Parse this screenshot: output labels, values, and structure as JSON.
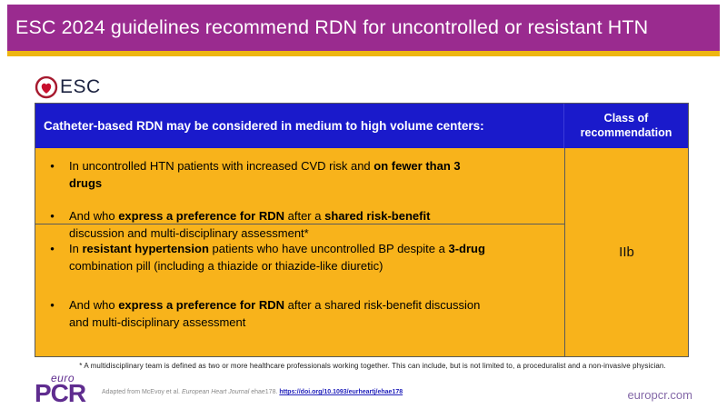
{
  "banner": {
    "title": "ESC 2024 guidelines recommend RDN for uncontrolled or resistant HTN"
  },
  "esc_logo": {
    "text": "ESC",
    "icon": "heart-icon"
  },
  "table": {
    "header": {
      "left": "Catheter-based RDN may be considered in medium to high volume centers:",
      "right": "Class of recommendation"
    },
    "rows": [
      {
        "bullets": [
          [
            {
              "t": "In uncontrolled HTN patients with increased CVD risk and "
            },
            {
              "t": "on fewer than 3 drugs",
              "b": true
            }
          ],
          [
            {
              "t": "And who "
            },
            {
              "t": "express a preference for RDN",
              "b": true
            },
            {
              "t": " after a "
            },
            {
              "t": "shared risk-benefit",
              "b": true
            },
            {
              "t": " discussion and multi-disciplinary assessment*"
            }
          ]
        ]
      },
      {
        "bullets": [
          [
            {
              "t": "In "
            },
            {
              "t": "resistant hypertension",
              "b": true
            },
            {
              "t": " patients who have uncontrolled BP despite a "
            },
            {
              "t": "3-drug",
              "b": true
            },
            {
              "t": " combination pill (including a thiazide or thiazide-like diuretic)"
            }
          ],
          [
            {
              "t": "And who "
            },
            {
              "t": "express a preference for RDN",
              "b": true
            },
            {
              "t": " after a shared risk-benefit discussion and multi-disciplinary assessment"
            }
          ]
        ]
      }
    ],
    "recommendation_class": "IIb"
  },
  "footnote": "* A multidisciplinary team is defined as two or more healthcare professionals working together. This can include, but is not limited to, a proceduralist and a non-invasive physician.",
  "footer": {
    "logo_top": "euro",
    "logo_main": "PCR",
    "citation_prefix": "Adapted from McEvoy et al. ",
    "citation_journal": "European Heart Journal",
    "citation_ref": "  ehae178. ",
    "citation_link": "https://doi.org/10.1093/eurheartj/ehae178",
    "website": "europcr.com"
  },
  "colors": {
    "banner_purple": "#9a2b8f",
    "gold": "#eeb611",
    "header_blue": "#1a1acb",
    "body_amber": "#f8b31b",
    "pcr_purple": "#5f2c8f",
    "heart_red": "#c8102e"
  }
}
